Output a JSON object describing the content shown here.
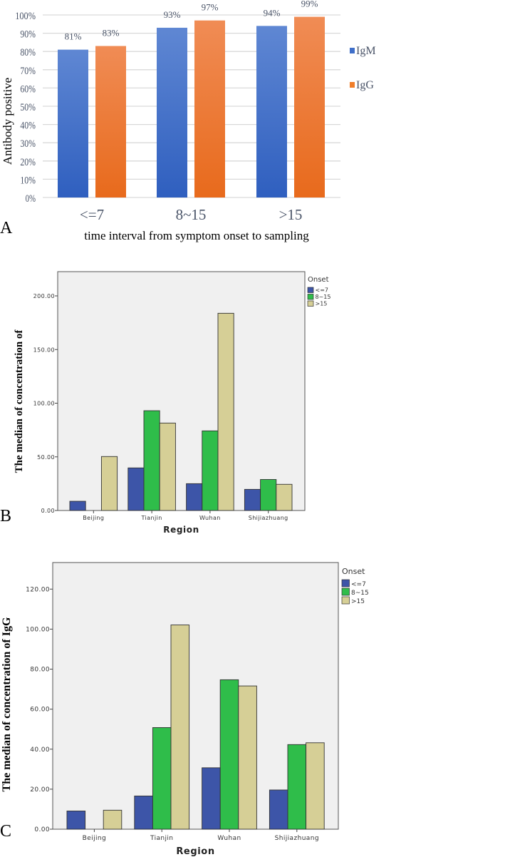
{
  "chart_data": [
    {
      "panel_label": "A",
      "type": "bar",
      "title": "",
      "xlabel": "time interval from symptom onset to sampling",
      "ylabel": "Antibody positive",
      "categories": [
        "<=7",
        "8~15",
        ">15"
      ],
      "series": [
        {
          "name": "IgM",
          "color": "#3f6fc9",
          "values": [
            81,
            93,
            94
          ],
          "labels": [
            "81%",
            "93%",
            "94%"
          ]
        },
        {
          "name": "IgG",
          "color": "#f07e2a",
          "values": [
            83,
            97,
            99
          ],
          "labels": [
            "83%",
            "97%",
            "99%"
          ]
        }
      ],
      "ylim": [
        0,
        100
      ],
      "yticks": [
        0,
        10,
        20,
        30,
        40,
        50,
        60,
        70,
        80,
        90,
        100
      ],
      "ytick_labels": [
        "0%",
        "10%",
        "20%",
        "30%",
        "40%",
        "50%",
        "60%",
        "70%",
        "80%",
        "90%",
        "100%"
      ],
      "grid": true,
      "legend_position": "right"
    },
    {
      "panel_label": "B",
      "type": "bar",
      "title": "",
      "xlabel": "Region",
      "ylabel": "The median of concentration of",
      "categories": [
        "Beijing",
        "Tianjin",
        "Wuhan",
        "Shijiazhuang"
      ],
      "legend_title": "Onset",
      "series": [
        {
          "name": "<=7",
          "color": "#3d55a8",
          "values": [
            8.6,
            39.7,
            25.0,
            19.7
          ]
        },
        {
          "name": "8~15",
          "color": "#2fbd4a",
          "values": [
            null,
            93.0,
            74.2,
            28.9
          ]
        },
        {
          "name": ">15",
          "color": "#d6cf96",
          "values": [
            50.3,
            81.5,
            183.8,
            24.4
          ]
        }
      ],
      "ylim": [
        0,
        222
      ],
      "yticks": [
        0,
        50,
        100,
        150,
        200
      ],
      "ytick_labels": [
        "0.00",
        "50.00",
        "100.00",
        "150.00",
        "200.00"
      ],
      "grid": false,
      "legend_position": "top-right"
    },
    {
      "panel_label": "C",
      "type": "bar",
      "title": "",
      "xlabel": "Region",
      "ylabel": "The median of concentration of IgG",
      "categories": [
        "Beijing",
        "Tianjin",
        "Wuhan",
        "Shijiazhuang"
      ],
      "legend_title": "Onset",
      "series": [
        {
          "name": "<=7",
          "color": "#3d55a8",
          "values": [
            9.1,
            16.6,
            30.7,
            19.6
          ]
        },
        {
          "name": "8~15",
          "color": "#2fbd4a",
          "values": [
            null,
            50.8,
            74.7,
            42.3
          ]
        },
        {
          "name": ">15",
          "color": "#d6cf96",
          "values": [
            9.5,
            102.1,
            71.6,
            43.2
          ]
        }
      ],
      "ylim": [
        0,
        133
      ],
      "yticks": [
        0,
        20,
        40,
        60,
        80,
        100,
        120
      ],
      "ytick_labels": [
        "0.00",
        "20.00",
        "40.00",
        "60.00",
        "80.00",
        "100.00",
        "120.00"
      ],
      "grid": false,
      "legend_position": "top-right"
    }
  ]
}
